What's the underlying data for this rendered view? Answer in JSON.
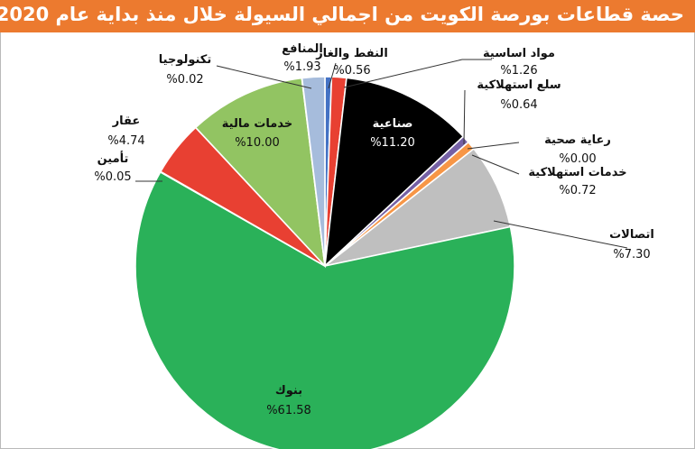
{
  "title": "حصة قطاعات بورصة الكويت من اجمالي السيولة خلال منذ بداية عام 2020",
  "chart_data": {
    "type": "pie",
    "title": "حصة قطاعات بورصة الكويت من اجمالي السيولة خلال منذ بداية عام 2020",
    "slices": [
      {
        "name": "النفط والغاز",
        "value": 0.56,
        "pct_text": "%0.56",
        "color": "#4472c4"
      },
      {
        "name": "مواد اساسية",
        "value": 1.26,
        "pct_text": "%1.26",
        "color": "#e84032"
      },
      {
        "name": "صناعية",
        "value": 11.2,
        "pct_text": "%11.20",
        "color": "#000000"
      },
      {
        "name": "سلع استهلاكية",
        "value": 0.64,
        "pct_text": "%0.64",
        "color": "#7560a5"
      },
      {
        "name": "رعاية صحية",
        "value": 0.0,
        "pct_text": "%0.00",
        "color": "#9bbb59"
      },
      {
        "name": "خدمات استهلاكية",
        "value": 0.72,
        "pct_text": "%0.72",
        "color": "#f79646"
      },
      {
        "name": "اتصالات",
        "value": 7.3,
        "pct_text": "%7.30",
        "color": "#bfbfbf"
      },
      {
        "name": "بنوك",
        "value": 61.58,
        "pct_text": "%61.58",
        "color": "#2ab159"
      },
      {
        "name": "تأمين",
        "value": 0.05,
        "pct_text": "%0.05",
        "color": "#2ab159"
      },
      {
        "name": "عقار",
        "value": 4.74,
        "pct_text": "%4.74",
        "color": "#e84032"
      },
      {
        "name": "خدمات مالية",
        "value": 10.0,
        "pct_text": "%10.00",
        "color": "#92c462"
      },
      {
        "name": "تكنولوجيا",
        "value": 0.02,
        "pct_text": "%0.02",
        "color": "#4472c4"
      },
      {
        "name": "المنافع",
        "value": 1.93,
        "pct_text": "%1.93",
        "color": "#a6bcdc"
      }
    ]
  }
}
